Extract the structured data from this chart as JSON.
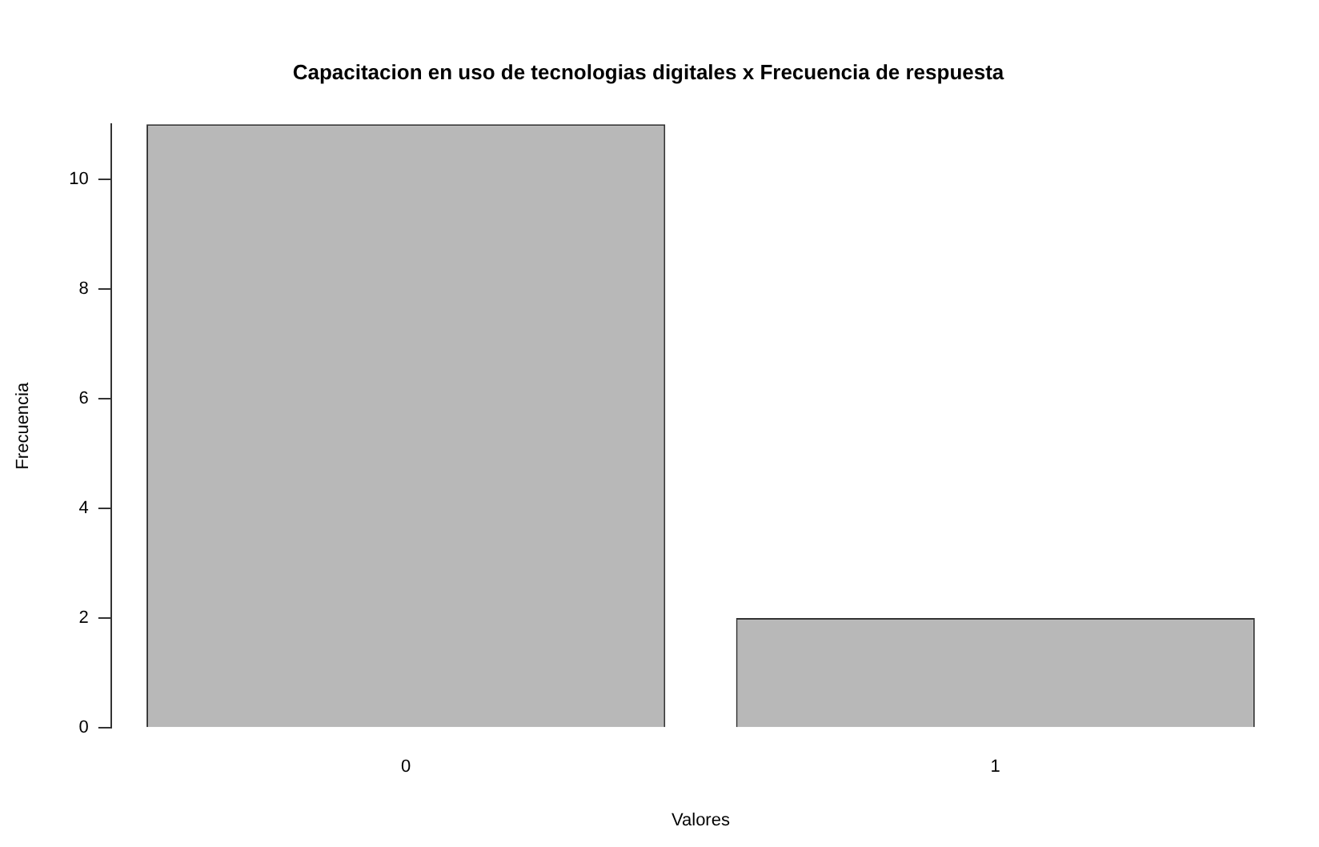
{
  "chart_data": {
    "type": "bar",
    "title": "Capacitacion en uso de tecnologias digitales x Frecuencia de respuesta",
    "xlabel": "Valores",
    "ylabel": "Frecuencia",
    "categories": [
      "0",
      "1"
    ],
    "values": [
      11,
      2
    ],
    "color": "#b8b8b8",
    "ylim": [
      0,
      11
    ],
    "yticks": [
      0,
      2,
      4,
      6,
      8,
      10
    ],
    "grid": false,
    "legend": false
  }
}
